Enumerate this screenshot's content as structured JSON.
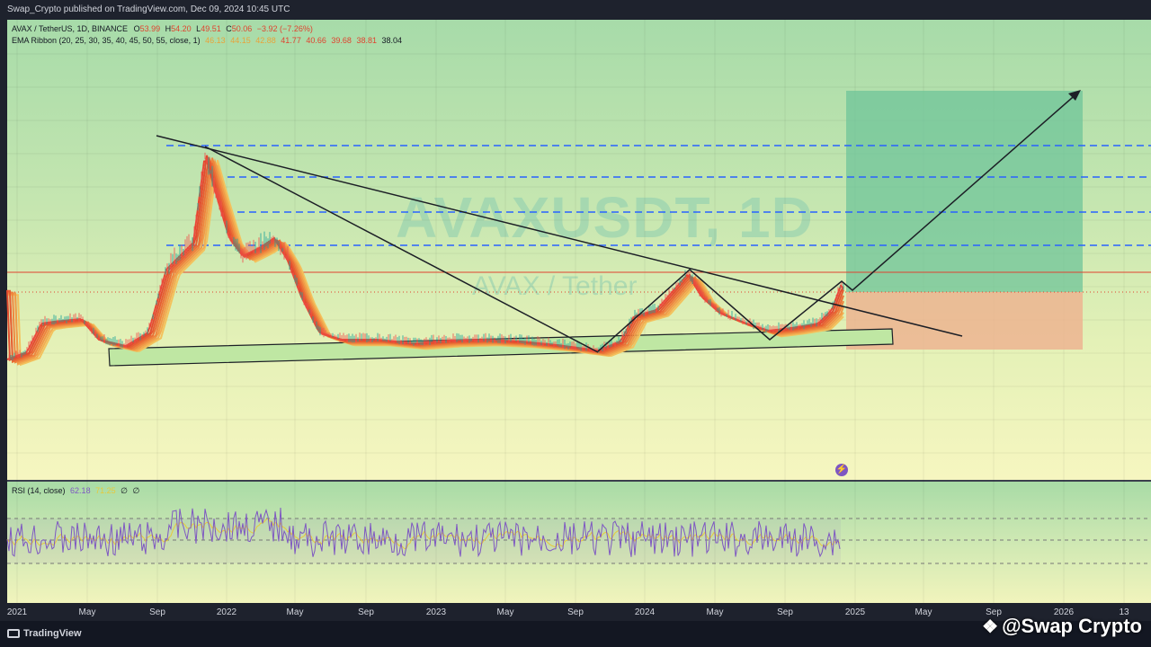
{
  "header": {
    "publisher": "Swap_Crypto published on TradingView.com, Dec 09, 2024 10:45 UTC"
  },
  "legend": {
    "symbol_line": "AVAX / TetherUS, 1D, BINANCE",
    "ohlc": {
      "open_label": "O",
      "open": "53.99",
      "high_label": "H",
      "high": "54.20",
      "low_label": "L",
      "low": "49.51",
      "close_label": "C",
      "close": "50.06",
      "change": "−3.92 (−7.26%)"
    },
    "ema_ribbon_label": "EMA Ribbon (20, 25, 30, 35, 40, 45, 50, 55, close, 1)",
    "ema_values": [
      "46.13",
      "44.15",
      "42.88",
      "41.77",
      "40.66",
      "39.68",
      "38.81",
      "38.04"
    ]
  },
  "watermark": {
    "symbol": "AVAXUSDT, 1D",
    "pair": "AVAX / Tether"
  },
  "rsi": {
    "label": "RSI (14, close)",
    "value": "62.18",
    "ma": "71.25",
    "extra1": "∅",
    "extra2": "∅"
  },
  "x_axis": {
    "labels": [
      "2021",
      "May",
      "Sep",
      "2022",
      "May",
      "Sep",
      "2023",
      "May",
      "Sep",
      "2024",
      "May",
      "Sep",
      "2025",
      "May",
      "Sep",
      "2026",
      "13"
    ]
  },
  "footer": {
    "brand": "TradingView",
    "author_watermark": "@Swap Crypto"
  },
  "colors": {
    "ribbon_top": "#e8442f",
    "ribbon_bottom": "#f3c25d",
    "dashed_levels": "#2962ff",
    "long_target_zone": "#6fc49a",
    "long_stop_zone": "#eeb08e",
    "rsi_line": "#7e57c2",
    "rsi_ma": "#e7c93b",
    "trend_lines": "#1c1f26",
    "support_zone": "#bfe7a3"
  },
  "icons": {
    "event_marker": "lightning-icon",
    "tv_logo": "tradingview-logo-icon",
    "author_glyph": "diamond-icon"
  }
}
